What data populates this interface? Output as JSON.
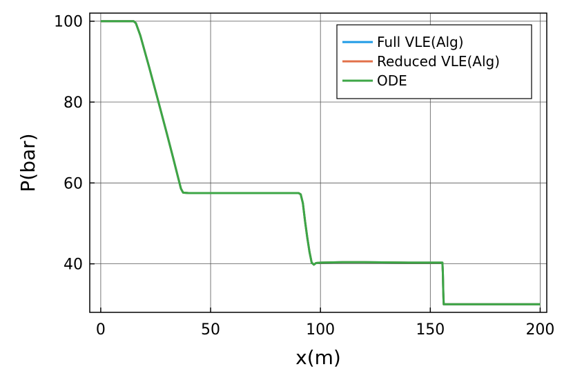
{
  "chart_data": {
    "type": "line",
    "xlabel": "x(m)",
    "ylabel": "P(bar)",
    "xlim": [
      -5,
      203
    ],
    "ylim": [
      28,
      102
    ],
    "xticks": [
      0,
      50,
      100,
      150,
      200
    ],
    "yticks": [
      40,
      60,
      80,
      100
    ],
    "xtick_labels": [
      "0",
      "50",
      "100",
      "150",
      "200"
    ],
    "ytick_labels": [
      "40",
      "60",
      "80",
      "100"
    ],
    "grid": true,
    "legend_position": "top-right",
    "series": [
      {
        "name": "Full VLE(Alg)",
        "color": "#1e9be6",
        "points": [
          [
            0,
            100
          ],
          [
            15,
            100
          ],
          [
            16,
            99.5
          ],
          [
            18,
            96.5
          ],
          [
            22,
            88.7
          ],
          [
            26,
            80.6
          ],
          [
            30,
            72.4
          ],
          [
            33,
            66.1
          ],
          [
            35,
            61.8
          ],
          [
            36.5,
            58.6
          ],
          [
            37.5,
            57.6
          ],
          [
            40,
            57.5
          ],
          [
            60,
            57.5
          ],
          [
            80,
            57.5
          ],
          [
            90,
            57.5
          ],
          [
            91,
            57.2
          ],
          [
            92,
            55
          ],
          [
            93,
            50.5
          ],
          [
            94,
            46.5
          ],
          [
            95,
            43
          ],
          [
            96,
            40.3
          ],
          [
            97,
            39.8
          ],
          [
            98,
            40.2
          ],
          [
            100,
            40.3
          ],
          [
            110,
            40.4
          ],
          [
            120,
            40.4
          ],
          [
            140,
            40.3
          ],
          [
            150,
            40.3
          ],
          [
            155.5,
            40.3
          ],
          [
            155.7,
            38
          ],
          [
            155.9,
            33
          ],
          [
            156.1,
            30
          ],
          [
            160,
            30
          ],
          [
            180,
            30
          ],
          [
            200,
            30
          ]
        ]
      },
      {
        "name": "Reduced VLE(Alg)",
        "color": "#e2704a",
        "points": [
          [
            0,
            100
          ],
          [
            15,
            100
          ],
          [
            16,
            99.5
          ],
          [
            18,
            96.5
          ],
          [
            22,
            88.7
          ],
          [
            26,
            80.6
          ],
          [
            30,
            72.4
          ],
          [
            33,
            66.1
          ],
          [
            35,
            61.8
          ],
          [
            36.5,
            58.6
          ],
          [
            37.5,
            57.6
          ],
          [
            40,
            57.5
          ],
          [
            60,
            57.5
          ],
          [
            80,
            57.5
          ],
          [
            90,
            57.5
          ],
          [
            91,
            57.2
          ],
          [
            92,
            55
          ],
          [
            93,
            50.5
          ],
          [
            94,
            46.5
          ],
          [
            95,
            43
          ],
          [
            96,
            40.3
          ],
          [
            97,
            39.8
          ],
          [
            98,
            40.2
          ],
          [
            100,
            40.3
          ],
          [
            110,
            40.4
          ],
          [
            120,
            40.4
          ],
          [
            140,
            40.3
          ],
          [
            150,
            40.3
          ],
          [
            155.5,
            40.3
          ],
          [
            155.7,
            38
          ],
          [
            155.9,
            33
          ],
          [
            156.1,
            30
          ],
          [
            160,
            30
          ],
          [
            180,
            30
          ],
          [
            200,
            30
          ]
        ]
      },
      {
        "name": "ODE",
        "color": "#3ca646",
        "points": [
          [
            0,
            100
          ],
          [
            15,
            100
          ],
          [
            16,
            99.5
          ],
          [
            18,
            96.5
          ],
          [
            22,
            88.7
          ],
          [
            26,
            80.6
          ],
          [
            30,
            72.4
          ],
          [
            33,
            66.1
          ],
          [
            35,
            61.8
          ],
          [
            36.5,
            58.6
          ],
          [
            37.5,
            57.6
          ],
          [
            40,
            57.5
          ],
          [
            60,
            57.5
          ],
          [
            80,
            57.5
          ],
          [
            90,
            57.5
          ],
          [
            91,
            57.2
          ],
          [
            92,
            55
          ],
          [
            93,
            50.5
          ],
          [
            94,
            46.5
          ],
          [
            95,
            43
          ],
          [
            96,
            40.3
          ],
          [
            97,
            39.8
          ],
          [
            98,
            40.2
          ],
          [
            100,
            40.3
          ],
          [
            110,
            40.4
          ],
          [
            120,
            40.4
          ],
          [
            140,
            40.3
          ],
          [
            150,
            40.3
          ],
          [
            155.5,
            40.3
          ],
          [
            155.7,
            38
          ],
          [
            155.9,
            33
          ],
          [
            156.1,
            30
          ],
          [
            160,
            30
          ],
          [
            180,
            30
          ],
          [
            200,
            30
          ]
        ]
      }
    ]
  }
}
